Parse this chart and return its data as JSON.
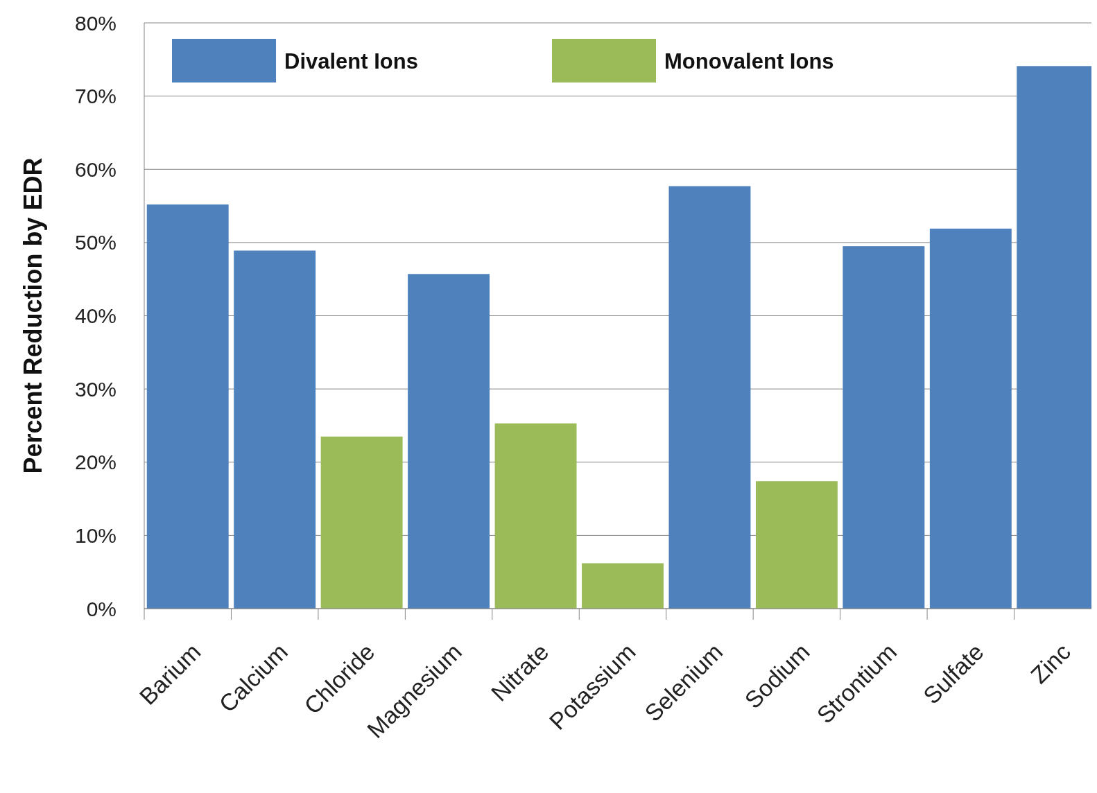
{
  "chart_data": {
    "type": "bar",
    "ylabel": "Percent Reduction by EDR",
    "categories": [
      "Barium",
      "Calcium",
      "Chloride",
      "Magnesium",
      "Nitrate",
      "Potassium",
      "Selenium",
      "Sodium",
      "Strontium",
      "Sulfate",
      "Zinc"
    ],
    "series": [
      {
        "name": "Divalent Ions",
        "color": "#4f81bd",
        "values": [
          55.2,
          48.9,
          null,
          45.7,
          null,
          null,
          57.7,
          null,
          49.5,
          51.9,
          74.1
        ]
      },
      {
        "name": "Monovalent Ions",
        "color": "#9bbb59",
        "values": [
          null,
          null,
          23.5,
          null,
          25.3,
          6.2,
          null,
          17.4,
          null,
          null,
          null
        ]
      }
    ],
    "ylim": [
      0,
      80
    ],
    "yticks": [
      {
        "value": 0,
        "label": "0%"
      },
      {
        "value": 10,
        "label": "10%"
      },
      {
        "value": 20,
        "label": "20%"
      },
      {
        "value": 30,
        "label": "30%"
      },
      {
        "value": 40,
        "label": "40%"
      },
      {
        "value": 50,
        "label": "50%"
      },
      {
        "value": 60,
        "label": "60%"
      },
      {
        "value": 70,
        "label": "70%"
      },
      {
        "value": 80,
        "label": "80%"
      }
    ],
    "grid": "y",
    "legend": "top"
  }
}
